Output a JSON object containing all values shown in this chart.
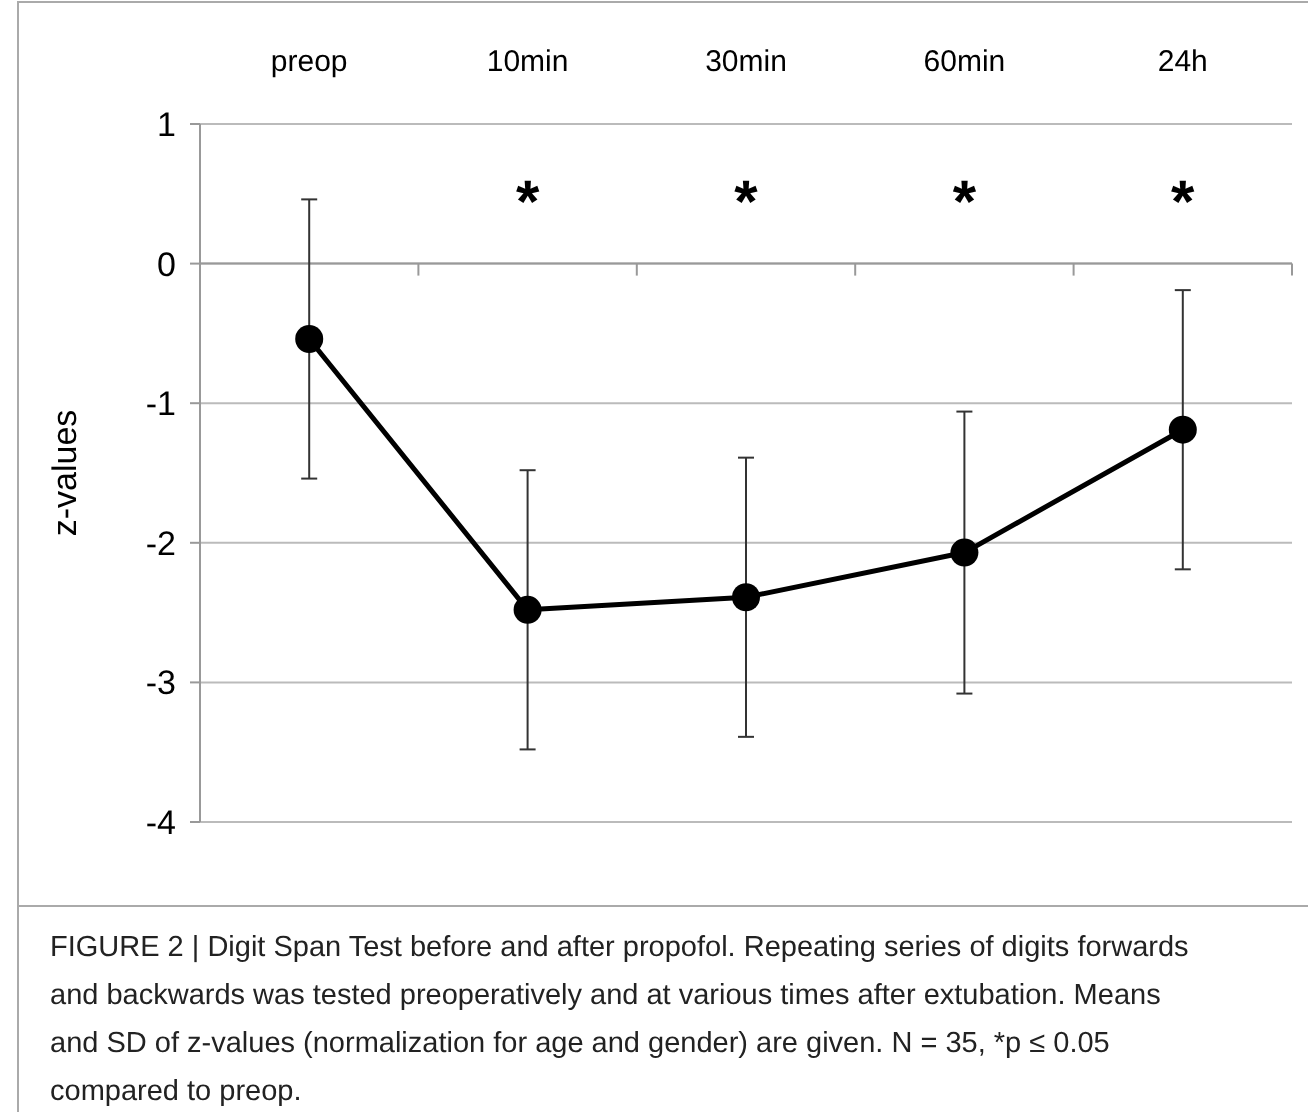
{
  "chart_data": {
    "type": "line",
    "ylabel": "z-values",
    "categories": [
      "preop",
      "10min",
      "30min",
      "60min",
      "24h"
    ],
    "series": [
      {
        "color": "#000000",
        "values": [
          -0.54,
          -2.48,
          -2.39,
          -2.07,
          -1.19
        ],
        "errors": [
          1.0,
          1.0,
          1.0,
          1.01,
          1.0
        ]
      }
    ],
    "ylim": [
      -4,
      1
    ],
    "yticks": [
      -4,
      -3,
      -2,
      -1,
      0,
      1
    ],
    "grid": "y",
    "marker": "circle",
    "line_style": "solid",
    "annotations": [
      "*",
      "*",
      "*",
      "*",
      "FIGURE 2 | Digit Span Test before and after propofol. Repeating series of digits forwards and backwards was tested preoperatively and at various times after extubation. Means and SD of z-values (normalization for age and gender) are given. N = 35, *p ≤ 0.05 compared to preop."
    ]
  }
}
